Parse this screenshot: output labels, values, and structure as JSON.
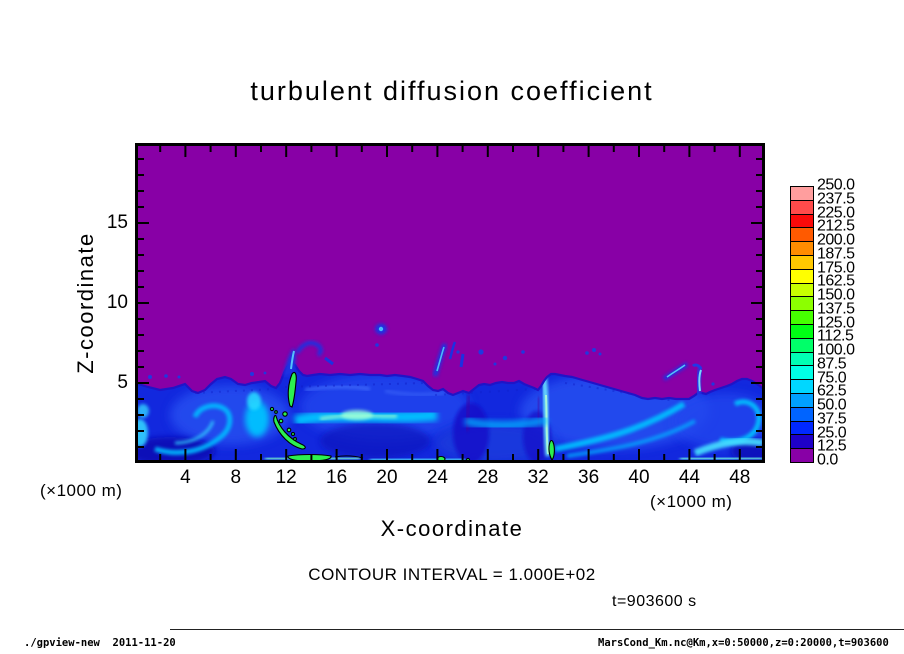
{
  "title": "turbulent diffusion coefficient",
  "axes": {
    "y_label": "Z-coordinate",
    "x_label": "X-coordinate",
    "y_unit": "(×1000 m)",
    "x_unit": "(×1000 m)",
    "y_ticks": [
      "15",
      "10",
      "5"
    ],
    "x_ticks": [
      "4",
      "8",
      "12",
      "16",
      "20",
      "24",
      "28",
      "32",
      "36",
      "40",
      "44",
      "48"
    ]
  },
  "colorbar": {
    "labels": [
      "250.0",
      "237.5",
      "225.0",
      "212.5",
      "200.0",
      "187.5",
      "175.0",
      "162.5",
      "150.0",
      "137.5",
      "125.0",
      "112.5",
      "100.0",
      "87.5",
      "75.0",
      "62.5",
      "50.0",
      "37.5",
      "25.0",
      "12.5",
      "0.0"
    ],
    "colors": [
      "#ff9e9e",
      "#ff4b4b",
      "#fa0a0a",
      "#ff5a00",
      "#ff8c00",
      "#ffc800",
      "#ffff00",
      "#c8ff00",
      "#8cff00",
      "#46ff00",
      "#00ff14",
      "#00ff69",
      "#00ffb4",
      "#00ffe6",
      "#00d7ff",
      "#00a0ff",
      "#0064ff",
      "#0028ff",
      "#1e00c8",
      "#8800a6"
    ]
  },
  "annotations": {
    "contour_interval": "CONTOUR INTERVAL = 1.000E+02",
    "time": "t=903600 s"
  },
  "footer": {
    "left": "./gpview-new  2011-11-20",
    "right": "MarsCond_Km.nc@Km,x=0:50000,z=0:20000,t=903600"
  },
  "chart_data": {
    "type": "heatmap",
    "title": "turbulent diffusion coefficient",
    "xlabel": "X-coordinate (×1000 m)",
    "ylabel": "Z-coordinate (×1000 m)",
    "xlim": [
      0,
      50
    ],
    "ylim": [
      0,
      20
    ],
    "value_range": [
      0,
      250
    ],
    "tone_levels": [
      0,
      12.5,
      25,
      37.5,
      50,
      62.5,
      75,
      87.5,
      100,
      112.5,
      125,
      137.5,
      150,
      162.5,
      175,
      187.5,
      200,
      212.5,
      225,
      237.5,
      250
    ],
    "contour_interval": 100.0,
    "time_seconds": 903600,
    "background_value_band": "0-12.5 (purple) fills the whole domain above the turbulent layer",
    "mixed_layer_top_profile": {
      "x": [
        0,
        2,
        4,
        5,
        6.5,
        8,
        10,
        11,
        12,
        13,
        15,
        17,
        19,
        21,
        23,
        25,
        26.5,
        28,
        30,
        32,
        33,
        35,
        37,
        39,
        40,
        42,
        44,
        45,
        46,
        47,
        48.5,
        50
      ],
      "z_top": [
        5.0,
        4.55,
        4.95,
        4.35,
        5.25,
        4.95,
        5.15,
        4.7,
        6.3,
        5.6,
        5.5,
        5.55,
        5.5,
        5.5,
        5.2,
        4.3,
        4.45,
        4.9,
        5.0,
        4.6,
        5.6,
        5.3,
        4.85,
        4.35,
        4.1,
        4.0,
        4.2,
        4.4,
        4.5,
        4.8,
        5.25,
        4.55
      ],
      "note": "interface between purple background (<12.5) and turbulent blue/cyan layer"
    },
    "features": [
      {
        "kind": "green filament >100 with black contour",
        "x": 12.4,
        "z": [
          3.4,
          5.7
        ]
      },
      {
        "kind": "green arc filament >100 with black contour",
        "x": [
          11.2,
          15.0
        ],
        "z": [
          0.7,
          2.9
        ]
      },
      {
        "kind": "green streak along bottom",
        "x": [
          12.2,
          15.6
        ],
        "z": [
          0.1,
          0.5
        ]
      },
      {
        "kind": "green blob at surface",
        "x": 33.3,
        "z": [
          0.2,
          1.3
        ]
      },
      {
        "kind": "detached blue plume blob",
        "x": 19.5,
        "z": 8.4
      },
      {
        "kind": "blue plume wisps",
        "x": [
          23.8,
          25.4
        ],
        "z": [
          5.5,
          7.6
        ]
      },
      {
        "kind": "diagonal blue wisp",
        "x": [
          42,
          44
        ],
        "z": [
          5.3,
          6.1
        ]
      },
      {
        "kind": "vertical blue plume",
        "x": 44.9,
        "z": [
          4.4,
          6.0
        ]
      },
      {
        "kind": "cyan eddy swirl",
        "x": [
          2,
          8
        ],
        "z": [
          0.8,
          3.5
        ]
      },
      {
        "kind": "cyan horizontal band",
        "x": [
          13,
          24
        ],
        "z": [
          2.4,
          3.2
        ]
      },
      {
        "kind": "cyan diagonal band",
        "x": [
          33,
          44.5
        ],
        "z": [
          0.8,
          3.6
        ]
      },
      {
        "kind": "cyan swirl",
        "x": [
          46.5,
          49.5
        ],
        "z": [
          1.5,
          4.0
        ]
      }
    ],
    "legend_position": "right",
    "grid": false
  }
}
